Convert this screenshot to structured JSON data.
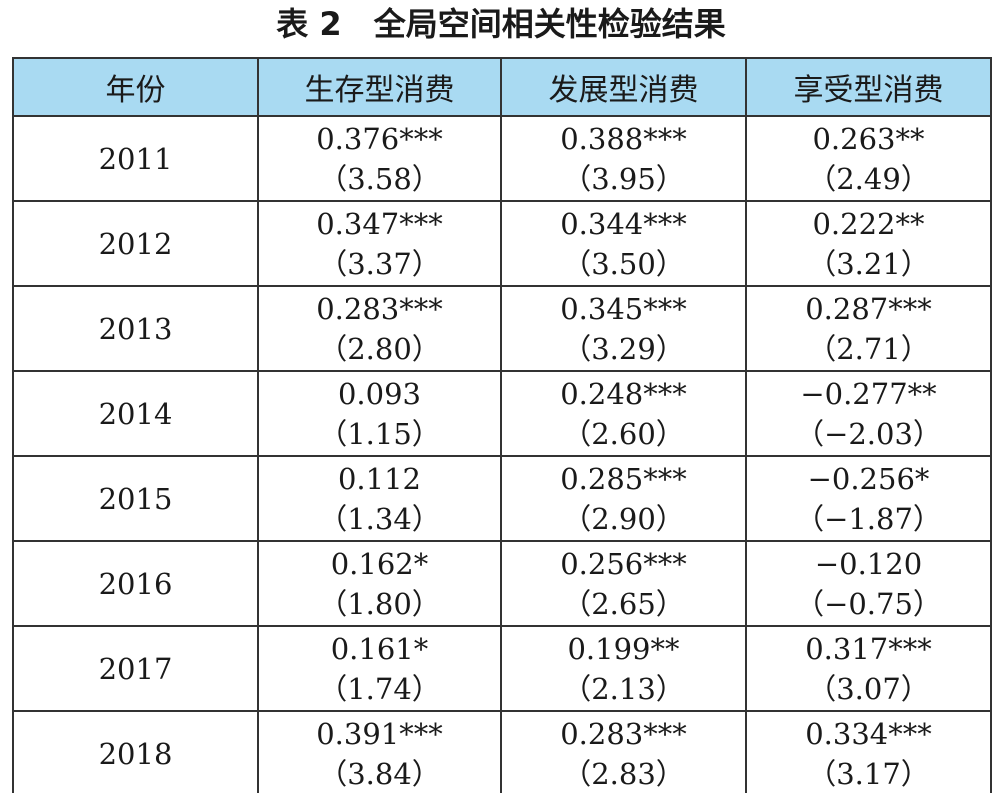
{
  "title": "表 2　全局空间相关性检验结果",
  "table": {
    "header": [
      "年份",
      "生存型消费",
      "发展型消费",
      "享受型消费"
    ],
    "rows": [
      {
        "year": "2011",
        "cells": [
          [
            "0.376***",
            "（3.58）"
          ],
          [
            "0.388***",
            "（3.95）"
          ],
          [
            "0.263**",
            "（2.49）"
          ]
        ]
      },
      {
        "year": "2012",
        "cells": [
          [
            "0.347***",
            "（3.37）"
          ],
          [
            "0.344***",
            "（3.50）"
          ],
          [
            "0.222**",
            "（3.21）"
          ]
        ]
      },
      {
        "year": "2013",
        "cells": [
          [
            "0.283***",
            "（2.80）"
          ],
          [
            "0.345***",
            "（3.29）"
          ],
          [
            "0.287***",
            "（2.71）"
          ]
        ]
      },
      {
        "year": "2014",
        "cells": [
          [
            "0.093",
            "（1.15）"
          ],
          [
            "0.248***",
            "（2.60）"
          ],
          [
            "−0.277**",
            "（−2.03）"
          ]
        ]
      },
      {
        "year": "2015",
        "cells": [
          [
            "0.112",
            "（1.34）"
          ],
          [
            "0.285***",
            "（2.90）"
          ],
          [
            "−0.256*",
            "（−1.87）"
          ]
        ]
      },
      {
        "year": "2016",
        "cells": [
          [
            "0.162*",
            "（1.80）"
          ],
          [
            "0.256***",
            "（2.65）"
          ],
          [
            "−0.120",
            "（−0.75）"
          ]
        ]
      },
      {
        "year": "2017",
        "cells": [
          [
            "0.161*",
            "（1.74）"
          ],
          [
            "0.199**",
            "（2.13）"
          ],
          [
            "0.317***",
            "（3.07）"
          ]
        ]
      },
      {
        "year": "2018",
        "cells": [
          [
            "0.391***",
            "（3.84）"
          ],
          [
            "0.283***",
            "（2.83）"
          ],
          [
            "0.334***",
            "（3.17）"
          ]
        ]
      }
    ]
  }
}
